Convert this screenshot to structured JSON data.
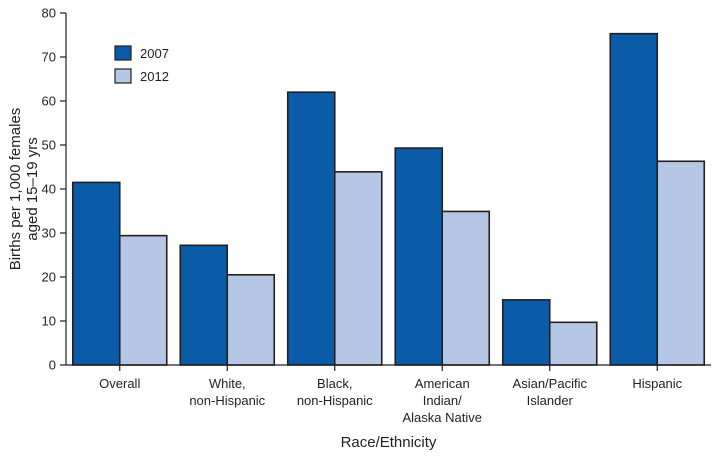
{
  "chart_data": {
    "type": "bar",
    "title": "",
    "xlabel": "Race/Ethnicity",
    "ylabel": [
      "Births per 1,000 females",
      "aged 15–19 yrs"
    ],
    "ylim": [
      0,
      80
    ],
    "yticks": [
      0,
      10,
      20,
      30,
      40,
      50,
      60,
      70,
      80
    ],
    "grid": false,
    "legend_position": "top-left",
    "categories": [
      [
        "Overall"
      ],
      [
        "White,",
        "non-Hispanic"
      ],
      [
        "Black,",
        "non-Hispanic"
      ],
      [
        "American",
        "Indian/",
        "Alaska Native"
      ],
      [
        "Asian/Pacific",
        "Islander"
      ],
      [
        "Hispanic"
      ]
    ],
    "series": [
      {
        "name": "2007",
        "color": "#0a5ca8",
        "values": [
          41.5,
          27.2,
          62.0,
          49.3,
          14.8,
          75.3
        ]
      },
      {
        "name": "2012",
        "color": "#b6c7e6",
        "values": [
          29.4,
          20.5,
          43.9,
          34.9,
          9.7,
          46.3
        ]
      }
    ]
  }
}
